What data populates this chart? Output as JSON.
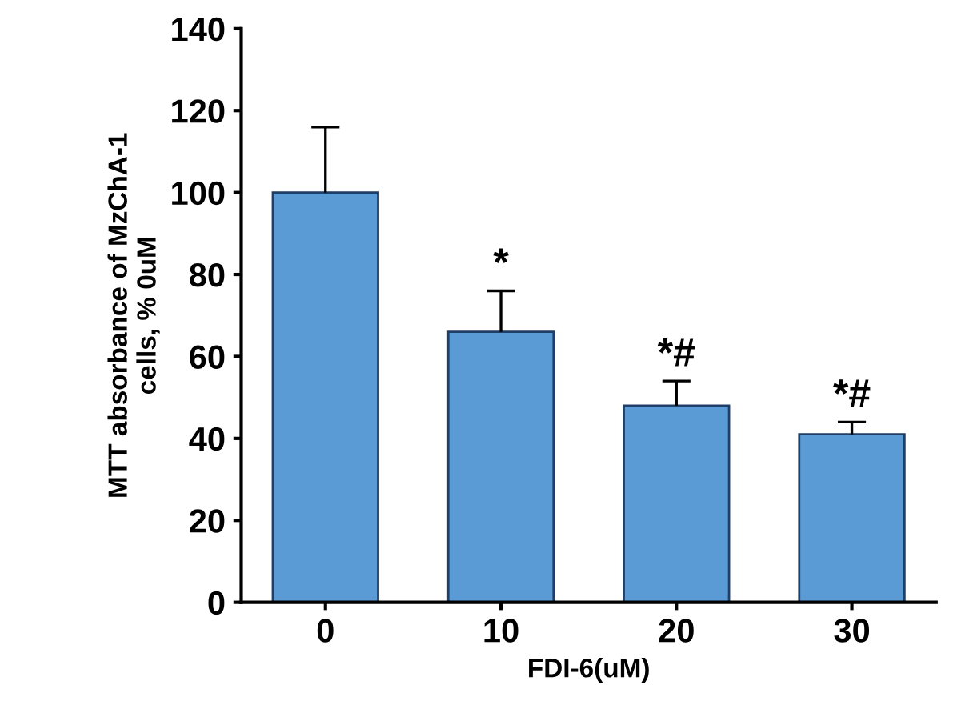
{
  "chart_data": {
    "type": "bar",
    "xlabel": "FDI-6(uM)",
    "ylabel": "MTT absorbance of MzChA-1\ncells, % 0uM",
    "categories": [
      "0",
      "10",
      "20",
      "30"
    ],
    "values": [
      100,
      66,
      48,
      41
    ],
    "errors": [
      [
        100,
        116
      ],
      [
        66,
        76
      ],
      [
        48,
        54
      ],
      [
        41,
        44
      ]
    ],
    "color": "#5b9bd5",
    "ylim": [
      0,
      140
    ],
    "yticks": [
      0,
      20,
      40,
      60,
      80,
      100,
      120,
      140
    ],
    "grid": false,
    "annotations": [
      {
        "text": "*",
        "x": "10",
        "y": 66
      },
      {
        "text": "*#",
        "x": "20",
        "y": 48
      },
      {
        "text": "*#",
        "x": "30",
        "y": 41
      }
    ]
  }
}
